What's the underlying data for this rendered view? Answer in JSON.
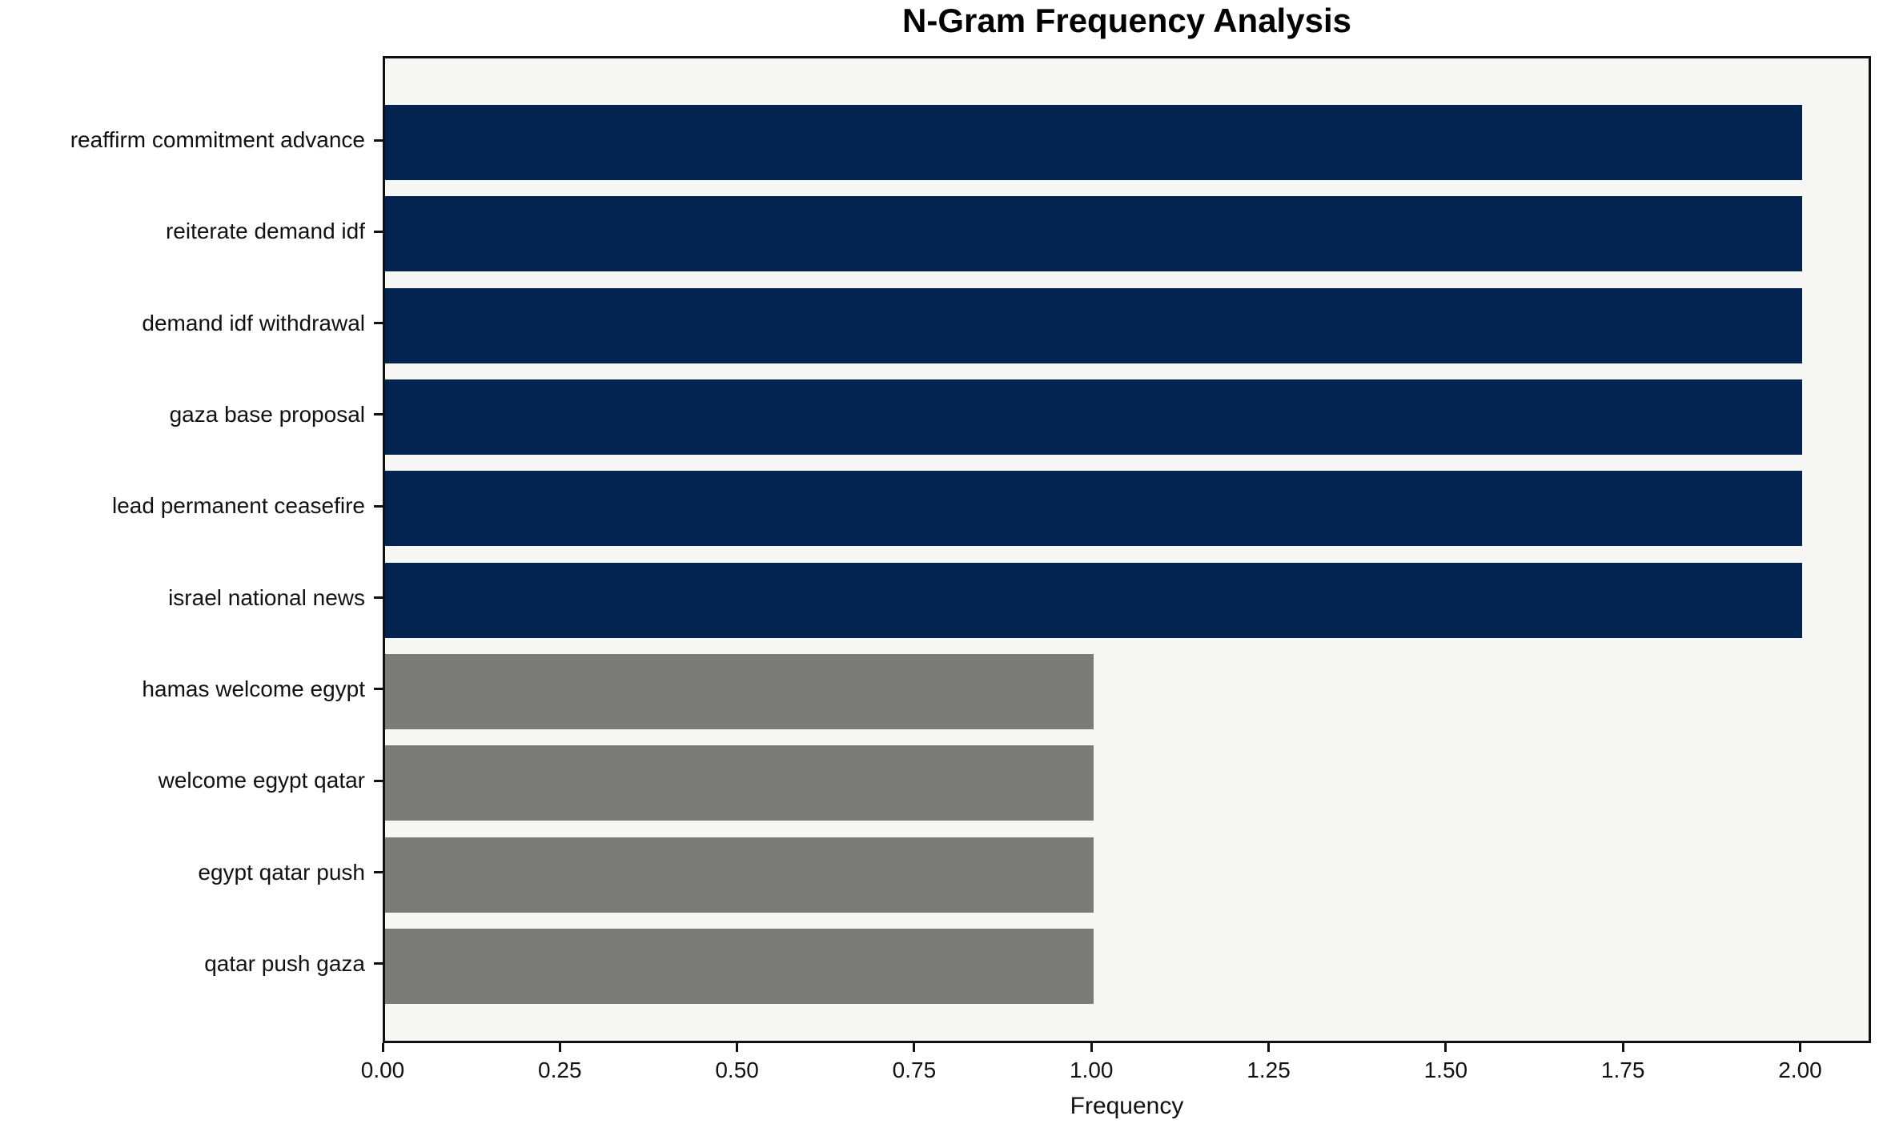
{
  "chart_data": {
    "type": "bar",
    "orientation": "horizontal",
    "title": "N-Gram Frequency Analysis",
    "xlabel": "Frequency",
    "ylabel": "",
    "categories": [
      "reaffirm commitment advance",
      "reiterate demand idf",
      "demand idf withdrawal",
      "gaza base proposal",
      "lead permanent ceasefire",
      "israel national news",
      "hamas welcome egypt",
      "welcome egypt qatar",
      "egypt qatar push",
      "qatar push gaza"
    ],
    "values": [
      2,
      2,
      2,
      2,
      2,
      2,
      1,
      1,
      1,
      1
    ],
    "bar_colors": [
      "#032451",
      "#032451",
      "#032451",
      "#032451",
      "#032451",
      "#032451",
      "#7b7b78",
      "#7b7b78",
      "#7b7b78",
      "#7b7b78"
    ],
    "xlim": [
      0,
      2.1
    ],
    "xtick_values": [
      0,
      0.25,
      0.5,
      0.75,
      1.0,
      1.25,
      1.5,
      1.75,
      2.0
    ],
    "xtick_labels": [
      "0.00",
      "0.25",
      "0.50",
      "0.75",
      "1.00",
      "1.25",
      "1.50",
      "1.75",
      "2.00"
    ],
    "grid": false,
    "legend": "none",
    "colors": {
      "bar_frequency_2": "#032451",
      "bar_frequency_1": "#7b7b78",
      "plot_background": "#f7f7f5",
      "figure_background": "#ffffff",
      "axis": "#111111"
    }
  }
}
